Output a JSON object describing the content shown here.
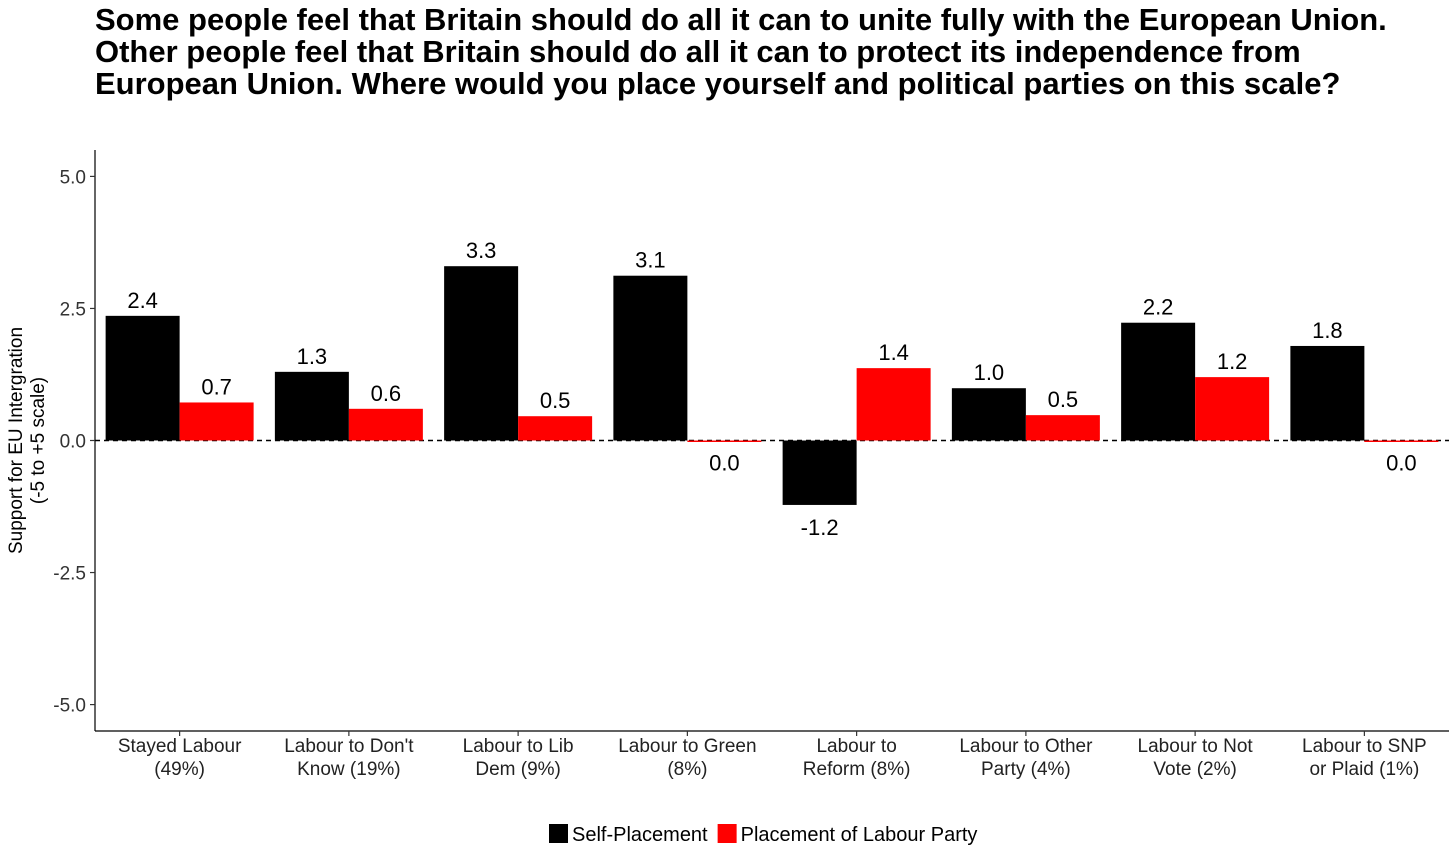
{
  "chart_data": {
    "type": "bar",
    "title": "Some people feel that Britain should do all it can to unite fully with the European Union. Other people feel that Britain should do all it can to protect its independence from European Union. Where would you place yourself and political parties on this scale?",
    "ylabel_lines": [
      "Support for EU Intergration",
      "(-5 to +5 scale)"
    ],
    "xlabel": "",
    "ylim": [
      -5.5,
      5.5
    ],
    "yticks": [
      5.0,
      2.5,
      0.0,
      -2.5,
      -5.0
    ],
    "ytick_labels": [
      "5.0",
      "2.5",
      "0.0",
      "-2.5",
      "-5.0"
    ],
    "reference_line": 0.0,
    "categories": [
      [
        "Stayed Labour",
        "(49%)"
      ],
      [
        "Labour to Don't",
        "Know (19%)"
      ],
      [
        "Labour to Lib",
        "Dem (9%)"
      ],
      [
        "Labour to Green",
        "(8%)"
      ],
      [
        "Labour to",
        "Reform (8%)"
      ],
      [
        "Labour to Other",
        "Party (4%)"
      ],
      [
        "Labour to Not",
        "Vote (2%)"
      ],
      [
        "Labour to SNP",
        "or Plaid (1%)"
      ]
    ],
    "series": [
      {
        "name": "Self-Placement",
        "color": "#000000",
        "values": [
          2.36,
          1.3,
          3.3,
          3.12,
          -1.22,
          0.99,
          2.23,
          1.79
        ],
        "labels": [
          "2.4",
          "1.3",
          "3.3",
          "3.1",
          "-1.2",
          "1.0",
          "2.2",
          "1.8"
        ]
      },
      {
        "name": "Placement of Labour Party",
        "color": "#ff0000",
        "values": [
          0.72,
          0.6,
          0.46,
          0.0,
          1.37,
          0.48,
          1.2,
          0.0
        ],
        "labels": [
          "0.7",
          "0.6",
          "0.5",
          "0.0",
          "1.4",
          "0.5",
          "1.2",
          "0.0"
        ]
      }
    ],
    "legend_position": "bottom",
    "grid": false
  }
}
